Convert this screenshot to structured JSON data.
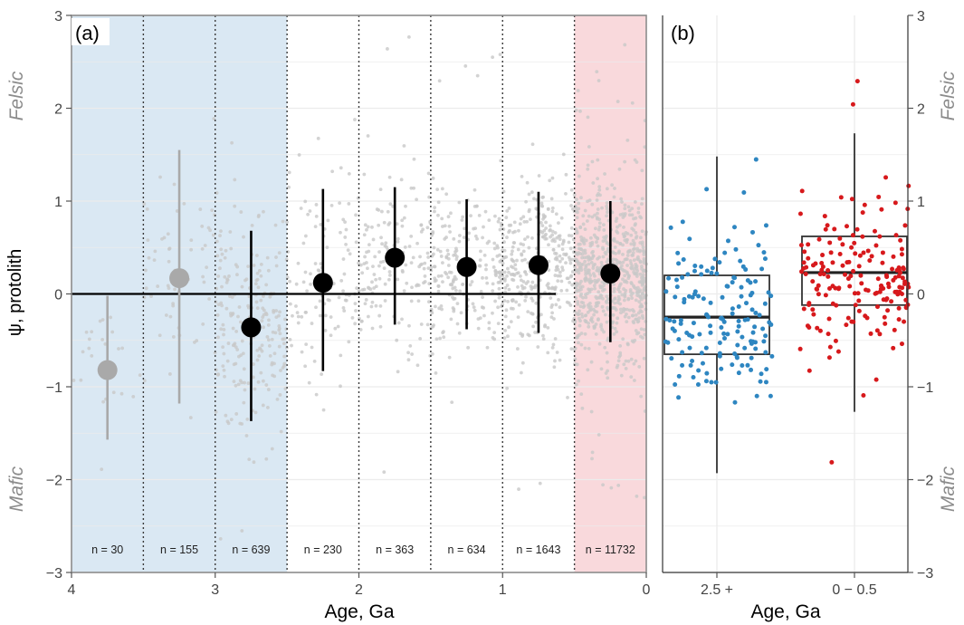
{
  "colors": {
    "blue_band": "#dae8f3",
    "red_band": "#f9d9dc",
    "grey_points": "#c8c8c8",
    "early_marker": "#a9a9a9",
    "black": "#000000",
    "blue_points": "#2e86c1",
    "red_points": "#d7191c"
  },
  "shared": {
    "ylabel": "ψ, protolith",
    "felsic": "Felsic",
    "mafic": "Mafic"
  },
  "chart_data": [
    {
      "type": "scatter",
      "panel_label": "(a)",
      "xlabel": "Age, Ga",
      "ylabel": "ψ, protolith",
      "xlim": [
        4,
        0
      ],
      "ylim": [
        -3,
        3
      ],
      "x_ticks": [
        "4",
        "3",
        "2",
        "1",
        "0"
      ],
      "y_ticks": [
        "−3",
        "−2",
        "−1",
        "0",
        "1",
        "2",
        "3"
      ],
      "bins": [
        {
          "x": 3.75,
          "mean": -0.82,
          "low": -1.57,
          "high": -0.02,
          "n_label": "n = 30",
          "color": "#a9a9a9"
        },
        {
          "x": 3.25,
          "mean": 0.17,
          "low": -1.18,
          "high": 1.55,
          "n_label": "n = 155",
          "color": "#a9a9a9"
        },
        {
          "x": 2.75,
          "mean": -0.36,
          "low": -1.37,
          "high": 0.68,
          "n_label": "n = 639",
          "color": "#000000"
        },
        {
          "x": 2.25,
          "mean": 0.12,
          "low": -0.83,
          "high": 1.13,
          "n_label": "n = 230",
          "color": "#000000"
        },
        {
          "x": 1.75,
          "mean": 0.39,
          "low": -0.33,
          "high": 1.15,
          "n_label": "n = 363",
          "color": "#000000"
        },
        {
          "x": 1.25,
          "mean": 0.29,
          "low": -0.38,
          "high": 1.02,
          "n_label": "n = 634",
          "color": "#000000"
        },
        {
          "x": 0.75,
          "mean": 0.31,
          "low": -0.42,
          "high": 1.1,
          "n_label": "n = 1643",
          "color": "#000000"
        },
        {
          "x": 0.25,
          "mean": 0.22,
          "low": -0.52,
          "high": 1.0,
          "n_label": "n = 11732",
          "color": "#000000"
        }
      ],
      "bin_boundaries": [
        3.5,
        3.0,
        2.5,
        2.0,
        1.5,
        1.0,
        0.5
      ],
      "shaded_regions": [
        {
          "from": 4.0,
          "to": 2.5,
          "color": "#dae8f3"
        },
        {
          "from": 0.5,
          "to": 0.0,
          "color": "#f9d9dc"
        }
      ],
      "reference_line_y": 0
    },
    {
      "type": "box",
      "panel_label": "(b)",
      "xlabel": "Age, Ga",
      "ylim": [
        -3,
        3
      ],
      "y_ticks": [
        "−3",
        "−2",
        "−1",
        "0",
        "1",
        "2",
        "3"
      ],
      "categories": [
        "2.5 +",
        "0 − 0.5"
      ],
      "boxes": [
        {
          "category": "2.5 +",
          "q1": -0.65,
          "median": -0.25,
          "q3": 0.2,
          "whisker_low": -1.93,
          "whisker_high": 1.48,
          "point_color": "#2e86c1"
        },
        {
          "category": "0 − 0.5",
          "q1": -0.12,
          "median": 0.23,
          "q3": 0.62,
          "whisker_low": -1.27,
          "whisker_high": 1.73,
          "point_color": "#d7191c"
        }
      ]
    }
  ]
}
